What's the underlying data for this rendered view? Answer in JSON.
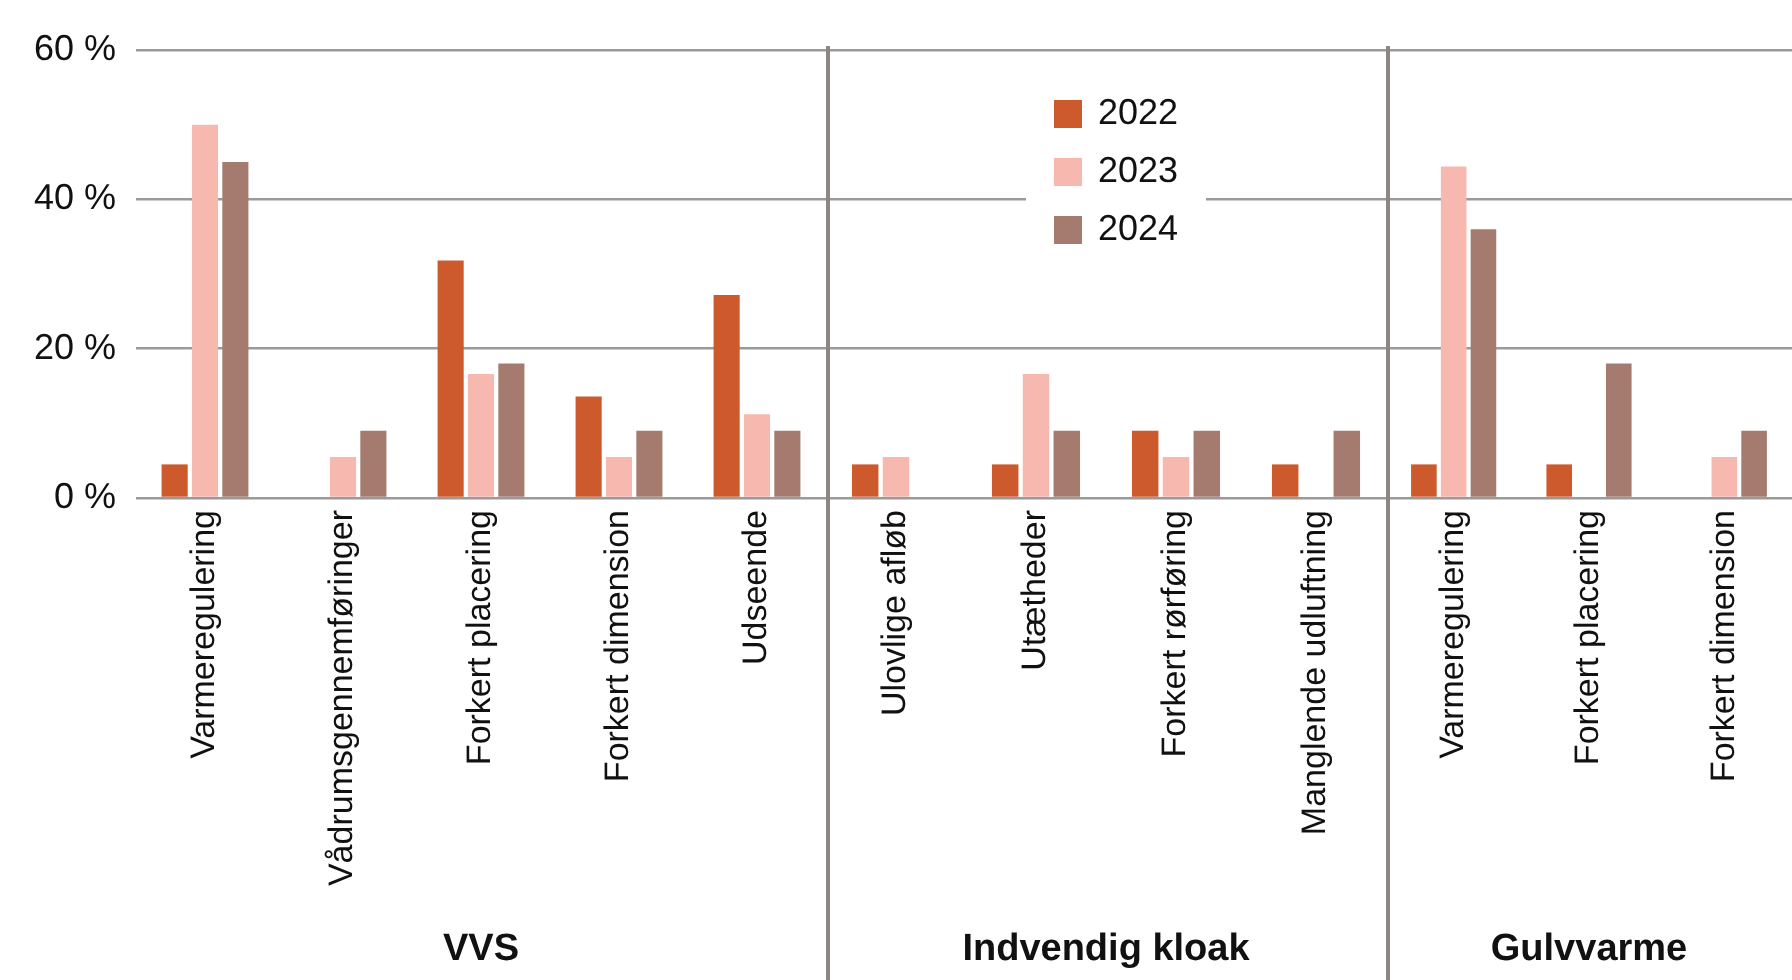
{
  "chart_data": [
    {
      "type": "bar",
      "xlabel": "VVS",
      "categories": [
        "Varmeregulering",
        "Vådrumsgennemføringer",
        "Forkert placering",
        "Forkert dimension",
        "Udseende"
      ],
      "series": [
        {
          "color": "#cc5a2c",
          "values": [
            4.5,
            0,
            31.8,
            13.6,
            27.2
          ]
        },
        {
          "color": "#f7b8b0",
          "values": [
            50,
            5.5,
            16.6,
            5.5,
            11.2
          ]
        },
        {
          "color": "#a47b6e",
          "values": [
            45,
            9,
            18,
            9,
            9
          ]
        }
      ],
      "ylim": [
        0,
        60
      ],
      "yticks": [
        {
          "value": 0,
          "label": "0 %"
        },
        {
          "value": 20,
          "label": "20 %"
        },
        {
          "value": 40,
          "label": "40 %"
        },
        {
          "value": 60,
          "label": "60 %"
        }
      ],
      "grid": "y"
    },
    {
      "type": "bar",
      "xlabel": "Indvendig kloak",
      "categories": [
        "Ulovlige afløb",
        "Utætheder",
        "Forkert rørføring",
        "Manglende udluftning"
      ],
      "series": [
        {
          "name": "2022",
          "color": "#cc5a2c",
          "values": [
            4.5,
            4.5,
            9,
            4.5
          ]
        },
        {
          "name": "2023",
          "color": "#f7b8b0",
          "values": [
            5.5,
            16.6,
            5.5,
            0
          ]
        },
        {
          "name": "2024",
          "color": "#a47b6e",
          "values": [
            0,
            9,
            9,
            9
          ]
        }
      ],
      "ylim": [
        0,
        60
      ],
      "yticks": [
        0,
        20,
        40,
        60
      ],
      "grid": "y",
      "legend": "top",
      "tick_labels": "x"
    },
    {
      "type": "bar",
      "xlabel": "Gulvvarme",
      "categories": [
        "Varmeregulering",
        "Forkert placering",
        "Forkert dimension"
      ],
      "series": [
        {
          "color": "#cc5a2c",
          "values": [
            4.5,
            4.5,
            0
          ]
        },
        {
          "color": "#f7b8b0",
          "values": [
            44.4,
            0,
            5.5
          ]
        },
        {
          "color": "#a47b6e",
          "values": [
            36,
            18,
            9
          ]
        }
      ],
      "ylim": [
        0,
        60
      ],
      "yticks": [
        0,
        20,
        40,
        60
      ],
      "grid": "y",
      "tick_labels": "x"
    }
  ]
}
